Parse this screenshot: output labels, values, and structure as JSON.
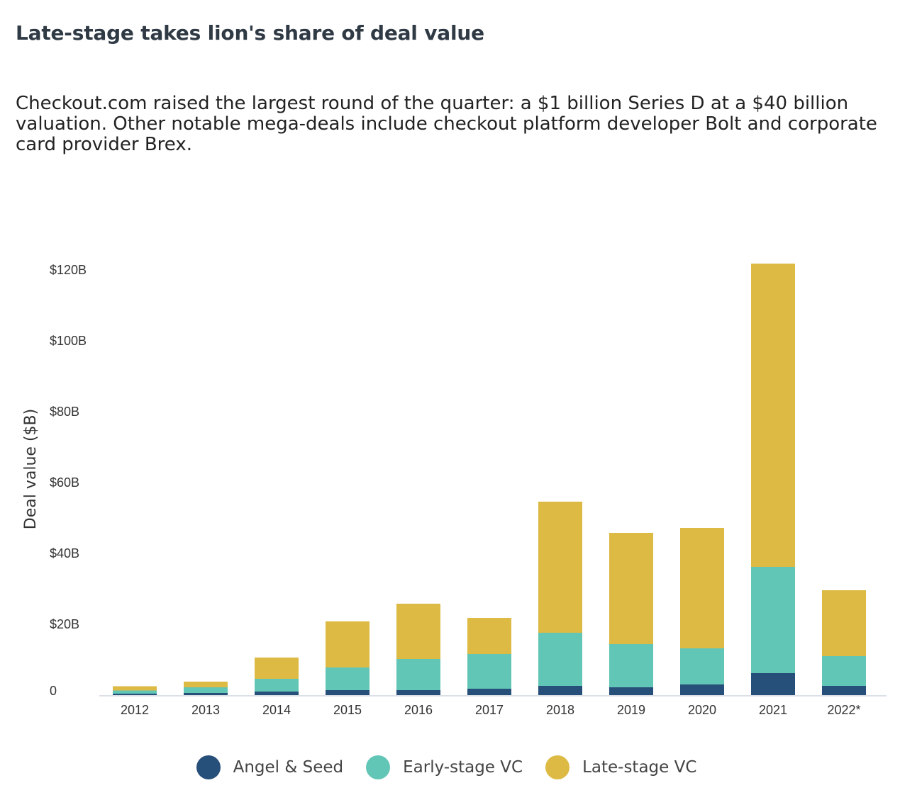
{
  "header": {
    "title": "Late-stage takes lion's share of deal value",
    "subtitle": "Checkout.com raised the largest round of the quarter: a $1 billion Series D at a $40 billion valuation. Other notable mega-deals include checkout platform developer Bolt and corporate card provider Brex."
  },
  "chart_data": {
    "type": "bar",
    "stacked": true,
    "categories": [
      "2012",
      "2013",
      "2014",
      "2015",
      "2016",
      "2017",
      "2018",
      "2019",
      "2020",
      "2021",
      "2022*"
    ],
    "series": [
      {
        "name": "Angel & Seed",
        "color": "#264f7a",
        "values": [
          0.4,
          0.6,
          1.0,
          1.4,
          1.4,
          1.8,
          2.6,
          2.2,
          3.0,
          6.2,
          2.6
        ]
      },
      {
        "name": "Early-stage VC",
        "color": "#62c6b6",
        "values": [
          0.9,
          1.6,
          3.6,
          6.4,
          8.8,
          9.8,
          15.0,
          12.2,
          10.2,
          30.0,
          8.4
        ]
      },
      {
        "name": "Late-stage VC",
        "color": "#ddba44",
        "values": [
          1.2,
          1.6,
          6.0,
          13.0,
          15.6,
          10.2,
          37.0,
          31.4,
          34.0,
          85.6,
          18.6
        ]
      }
    ],
    "ylabel": "Deal value ($B)",
    "xlabel": "",
    "ylim": [
      0,
      122
    ],
    "y_ticks": [
      {
        "value": 0,
        "label": "0"
      },
      {
        "value": 20,
        "label": "$20B"
      },
      {
        "value": 40,
        "label": "$40B"
      },
      {
        "value": 60,
        "label": "$60B"
      },
      {
        "value": 80,
        "label": "$80B"
      },
      {
        "value": 100,
        "label": "$100B"
      },
      {
        "value": 120,
        "label": "$120B"
      }
    ],
    "grid": false,
    "legend_position": "bottom"
  },
  "legend": [
    {
      "label": "Angel & Seed",
      "color": "#264f7a"
    },
    {
      "label": "Early-stage VC",
      "color": "#62c6b6"
    },
    {
      "label": "Late-stage VC",
      "color": "#ddba44"
    }
  ]
}
